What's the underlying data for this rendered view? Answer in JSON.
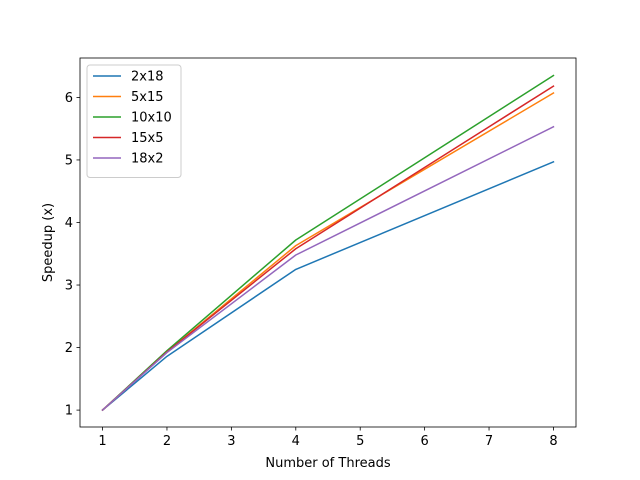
{
  "chart_data": {
    "type": "line",
    "xlabel": "Number of Threads",
    "ylabel": "Speedup (x)",
    "xlim": [
      0.65,
      8.35
    ],
    "ylim": [
      0.73,
      6.63
    ],
    "xticks": [
      1,
      2,
      3,
      4,
      5,
      6,
      7,
      8
    ],
    "yticks": [
      1,
      2,
      3,
      4,
      5,
      6
    ],
    "x": [
      1,
      2,
      4,
      8
    ],
    "legend_position": "upper-left",
    "grid": false,
    "series": [
      {
        "name": "2x18",
        "color": "#1f77b4",
        "values": [
          1.0,
          1.86,
          3.25,
          4.97
        ]
      },
      {
        "name": "5x15",
        "color": "#ff7f0e",
        "values": [
          1.0,
          1.93,
          3.63,
          6.07
        ]
      },
      {
        "name": "10x10",
        "color": "#2ca02c",
        "values": [
          1.0,
          1.95,
          3.72,
          6.35
        ]
      },
      {
        "name": "15x5",
        "color": "#d62728",
        "values": [
          1.0,
          1.93,
          3.58,
          6.18
        ]
      },
      {
        "name": "18x2",
        "color": "#9467bd",
        "values": [
          1.0,
          1.92,
          3.48,
          5.53
        ]
      }
    ]
  }
}
